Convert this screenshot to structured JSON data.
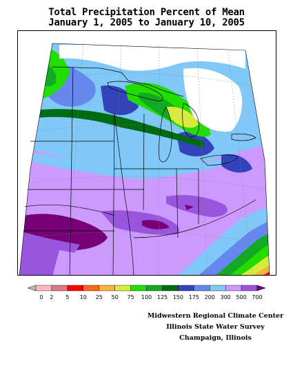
{
  "title": {
    "line1": "Total Precipitation Percent of Mean",
    "line2": "January 1, 2005 to January 10, 2005"
  },
  "legend": {
    "labels": [
      "0",
      "2",
      "5",
      "10",
      "25",
      "50",
      "75",
      "100",
      "125",
      "150",
      "175",
      "200",
      "300",
      "500",
      "700"
    ],
    "colors": [
      "#bbbbbb",
      "#ffb6c1",
      "#d97a85",
      "#ff0000",
      "#ff6622",
      "#f7b43c",
      "#d8ea3c",
      "#22dd00",
      "#11aa22",
      "#006b11",
      "#3344bb",
      "#6688ee",
      "#80c8f8",
      "#cc99ff",
      "#9955dd",
      "#770077"
    ]
  },
  "credits": {
    "line1": "Midwestern Regional Climate Center",
    "line2": "Illinois State Water Survey",
    "line3": "Champaign, Illinois"
  },
  "colors": {
    "background": "#ffffff",
    "outline": "#000000",
    "gridlines": "#888888"
  }
}
